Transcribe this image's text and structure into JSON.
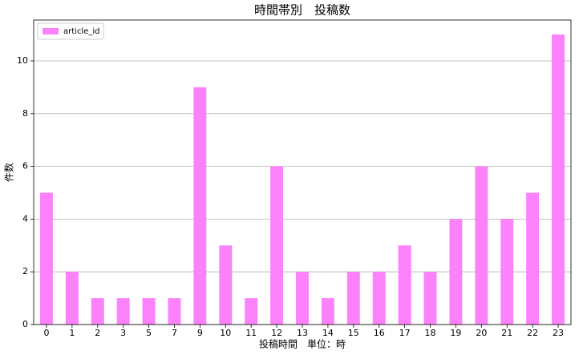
{
  "chart_data": {
    "type": "bar",
    "title": "時間帯別　投稿数",
    "x_label": "投稿時間　単位：時",
    "y_label": "件数",
    "categories": [
      "0",
      "1",
      "2",
      "3",
      "5",
      "7",
      "9",
      "10",
      "11",
      "12",
      "13",
      "14",
      "15",
      "16",
      "17",
      "18",
      "19",
      "20",
      "21",
      "22",
      "23"
    ],
    "series": [
      {
        "name": "article_id",
        "color": "#fb82fb",
        "values": [
          5,
          2,
          1,
          1,
          1,
          1,
          9,
          3,
          1,
          6,
          2,
          1,
          2,
          2,
          3,
          2,
          4,
          6,
          4,
          5,
          11
        ]
      }
    ],
    "ylim": [
      0,
      11.55
    ],
    "yticks": [
      0,
      2,
      4,
      6,
      8,
      10
    ],
    "grid": true,
    "legend": "upper left"
  }
}
